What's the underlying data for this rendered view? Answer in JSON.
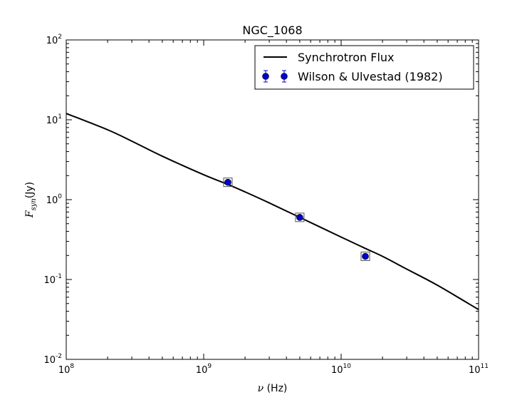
{
  "chart_data": {
    "type": "line",
    "title": "NGC_1068",
    "xlabel": "(Hz)",
    "xlabel_symbol": "ν",
    "ylabel": "(Jy)",
    "ylabel_symbol": "F",
    "ylabel_subscript": "syn",
    "xscale": "log",
    "yscale": "log",
    "xlim": [
      100000000.0,
      100000000000.0
    ],
    "ylim": [
      0.01,
      100
    ],
    "x_ticks": [
      {
        "base": "10",
        "exp": "8"
      },
      {
        "base": "10",
        "exp": "9"
      },
      {
        "base": "10",
        "exp": "10"
      },
      {
        "base": "10",
        "exp": "11"
      }
    ],
    "y_ticks": [
      {
        "base": "10",
        "exp": "-2"
      },
      {
        "base": "10",
        "exp": "-1"
      },
      {
        "base": "10",
        "exp": "0"
      },
      {
        "base": "10",
        "exp": "1"
      },
      {
        "base": "10",
        "exp": "2"
      }
    ],
    "legend_position": "top-right",
    "series": [
      {
        "name": "Synchrotron Flux",
        "kind": "line",
        "color": "#000000",
        "x": [
          100000000.0,
          200000000.0,
          300000000.0,
          500000000.0,
          1000000000.0,
          1500000000.0,
          2000000000.0,
          3000000000.0,
          5000000000.0,
          10000000000.0,
          15000000000.0,
          20000000000.0,
          30000000000.0,
          50000000000.0,
          100000000000.0
        ],
        "y": [
          12.0,
          7.5,
          5.4,
          3.5,
          2.05,
          1.55,
          1.25,
          0.91,
          0.6,
          0.34,
          0.245,
          0.195,
          0.135,
          0.085,
          0.042
        ]
      },
      {
        "name": "Wilson & Ulvestad (1982)",
        "kind": "scatter",
        "color": "#0000cc",
        "x": [
          1500000000.0,
          5000000000.0,
          15000000000.0
        ],
        "y": [
          1.65,
          0.6,
          0.195
        ]
      }
    ]
  }
}
